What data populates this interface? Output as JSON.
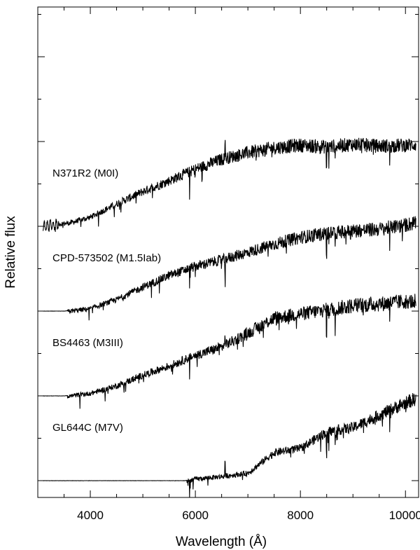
{
  "chart_data": {
    "type": "line",
    "title": "",
    "xlabel": "Wavelength  (Å)",
    "ylabel": "Relative flux",
    "xlim": [
      3000,
      10250
    ],
    "x_ticks": [
      4000,
      6000,
      8000,
      10000
    ],
    "x_tick_labels": [
      "4000",
      "6000",
      "8000",
      "10000"
    ],
    "y_ticks": "unlabeled",
    "grid": false,
    "legend": "none (series labelled inline on the left)",
    "series": [
      {
        "name": "N371R2 (M0I)",
        "offset": 3,
        "x": [
          3100,
          3300,
          3600,
          4000,
          4500,
          5000,
          5500,
          6000,
          6500,
          7000,
          7500,
          8000,
          8500,
          9000,
          9500,
          10000,
          10200
        ],
        "y": [
          0.0,
          0.03,
          0.05,
          0.12,
          0.28,
          0.43,
          0.56,
          0.7,
          0.82,
          0.9,
          0.96,
          0.99,
          0.97,
          1.0,
          0.98,
          0.99,
          1.0
        ]
      },
      {
        "name": "CPD-573502 (M1.5Iab)",
        "offset": 2,
        "x": [
          3100,
          3500,
          4000,
          4500,
          5000,
          5500,
          6000,
          6500,
          7000,
          7500,
          8000,
          8500,
          9000,
          9500,
          10000,
          10200
        ],
        "y": [
          0.0,
          0.0,
          0.04,
          0.15,
          0.3,
          0.44,
          0.55,
          0.63,
          0.72,
          0.82,
          0.9,
          0.95,
          0.98,
          1.0,
          1.05,
          1.08
        ]
      },
      {
        "name": "BS4463 (M3III)",
        "offset": 1,
        "x": [
          3100,
          3500,
          4000,
          4500,
          5000,
          5500,
          6000,
          6500,
          7000,
          7500,
          8000,
          8500,
          9000,
          9500,
          10000,
          10200
        ],
        "y": [
          0.0,
          0.0,
          0.04,
          0.13,
          0.26,
          0.37,
          0.5,
          0.6,
          0.77,
          0.95,
          1.0,
          1.05,
          1.1,
          1.12,
          1.15,
          1.15
        ]
      },
      {
        "name": "GL644C (M7V)",
        "offset": 0,
        "x": [
          3100,
          5800,
          6000,
          6500,
          7000,
          7500,
          8000,
          8500,
          9000,
          9500,
          10000,
          10200
        ],
        "y": [
          0.0,
          0.0,
          0.03,
          0.06,
          0.1,
          0.35,
          0.4,
          0.6,
          0.65,
          0.8,
          0.95,
          1.0
        ]
      }
    ]
  }
}
